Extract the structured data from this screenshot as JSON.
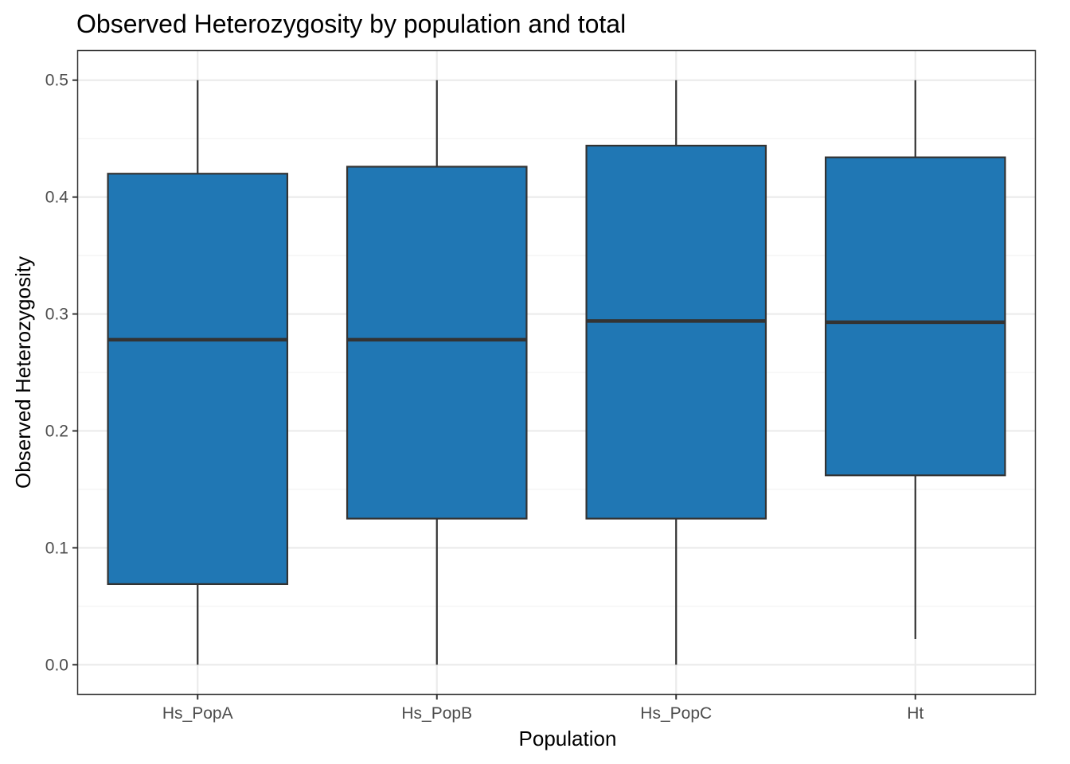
{
  "chart_data": {
    "type": "box",
    "title": "Observed Heterozygosity by population and total",
    "xlabel": "Population",
    "ylabel": "Observed Heterozygosity",
    "ylim": [
      -0.025,
      0.525
    ],
    "yticks": [
      0.0,
      0.1,
      0.2,
      0.3,
      0.4,
      0.5
    ],
    "ytick_labels": [
      "0.0",
      "0.1",
      "0.2",
      "0.3",
      "0.4",
      "0.5"
    ],
    "grid": true,
    "legend": "none",
    "colors": {
      "box_fill": "#2077b4",
      "box_outline": "#333333"
    },
    "categories": [
      "Hs_PopA",
      "Hs_PopB",
      "Hs_PopC",
      "Ht"
    ],
    "boxes": [
      {
        "category": "Hs_PopA",
        "whisker_low": 0.0,
        "q1": 0.069,
        "median": 0.278,
        "q3": 0.42,
        "whisker_high": 0.5
      },
      {
        "category": "Hs_PopB",
        "whisker_low": 0.0,
        "q1": 0.125,
        "median": 0.278,
        "q3": 0.426,
        "whisker_high": 0.5
      },
      {
        "category": "Hs_PopC",
        "whisker_low": 0.0,
        "q1": 0.125,
        "median": 0.294,
        "q3": 0.444,
        "whisker_high": 0.5
      },
      {
        "category": "Ht",
        "whisker_low": 0.022,
        "q1": 0.162,
        "median": 0.293,
        "q3": 0.434,
        "whisker_high": 0.5
      }
    ]
  }
}
